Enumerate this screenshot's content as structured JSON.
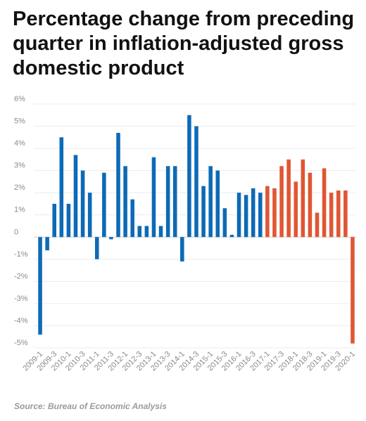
{
  "chart_data": {
    "type": "bar",
    "title": "Percentage change from preceding quarter in inflation-adjusted gross domestic product",
    "source": "Source: Bureau of Economic Analysis",
    "ylim": [
      -5,
      6
    ],
    "yticks": [
      "6%",
      "5%",
      "4%",
      "3%",
      "2%",
      "1%",
      "0",
      "-1%",
      "-2%",
      "-3%",
      "-4%",
      "-5%"
    ],
    "grid": true,
    "colors": {
      "bar_default": "#0d6ab6",
      "bar_recent": "#e05634"
    },
    "categories": [
      "2009-1",
      "2009-2",
      "2009-3",
      "2009-4",
      "2010-1",
      "2010-2",
      "2010-3",
      "2010-4",
      "2011-1",
      "2011-2",
      "2011-3",
      "2011-4",
      "2012-1",
      "2012-2",
      "2012-3",
      "2012-4",
      "2013-1",
      "2013-2",
      "2013-3",
      "2013-4",
      "2014-1",
      "2014-2",
      "2014-3",
      "2014-4",
      "2015-1",
      "2015-2",
      "2015-3",
      "2015-4",
      "2016-1",
      "2016-2",
      "2016-3",
      "2016-4",
      "2017-1",
      "2017-2",
      "2017-3",
      "2017-4",
      "2018-1",
      "2018-2",
      "2018-3",
      "2018-4",
      "2019-1",
      "2019-2",
      "2019-3",
      "2019-4",
      "2020-1"
    ],
    "values": [
      -4.4,
      -0.6,
      1.5,
      4.5,
      1.5,
      3.7,
      3.0,
      2.0,
      -1.0,
      2.9,
      -0.1,
      4.7,
      3.2,
      1.7,
      0.5,
      0.5,
      3.6,
      0.5,
      3.2,
      3.2,
      -1.1,
      5.5,
      5.0,
      2.3,
      3.2,
      3.0,
      1.3,
      0.1,
      2.0,
      1.9,
      2.2,
      2.0,
      2.3,
      2.2,
      3.2,
      3.5,
      2.5,
      3.5,
      2.9,
      1.1,
      3.1,
      2.0,
      2.1,
      2.1,
      -4.8
    ],
    "highlight_from": "2017-1",
    "xtick_labels": [
      "2009-1",
      "2009-3",
      "2010-1",
      "2010-3",
      "2011-1",
      "2011-3",
      "2012-1",
      "2012-3",
      "2013-1",
      "2013-3",
      "2014-1",
      "2014-3",
      "2015-1",
      "2015-3",
      "2016-1",
      "2016-3",
      "2017-1",
      "2017-3",
      "2018-1",
      "2018-3",
      "2019-1",
      "2019-3",
      "2020-1"
    ]
  }
}
